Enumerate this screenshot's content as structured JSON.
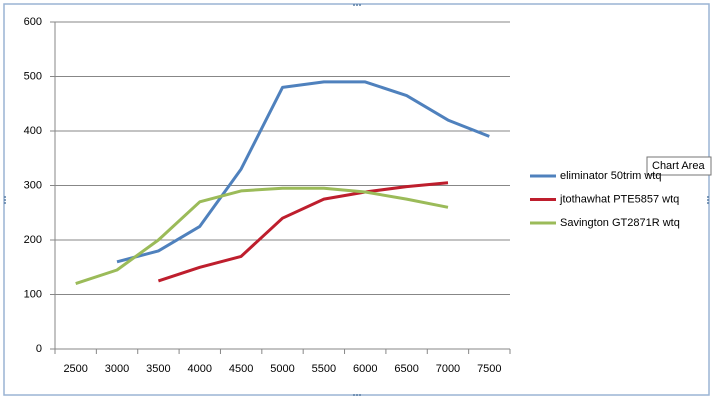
{
  "chart_data": {
    "type": "line",
    "categories": [
      "2500",
      "3000",
      "3500",
      "4000",
      "4500",
      "5000",
      "5500",
      "6000",
      "6500",
      "7000",
      "7500"
    ],
    "series": [
      {
        "name": "eliminator 50trim wtq",
        "color": "#4f81bd",
        "values": [
          null,
          160,
          180,
          225,
          330,
          480,
          490,
          490,
          465,
          420,
          390
        ]
      },
      {
        "name": "jtothawhat  PTE5857 wtq",
        "color": "#be1e2d",
        "values": [
          null,
          null,
          125,
          150,
          170,
          240,
          275,
          288,
          298,
          305,
          null
        ]
      },
      {
        "name": "Savington GT2871R wtq",
        "color": "#9bbb59",
        "values": [
          120,
          145,
          200,
          270,
          290,
          295,
          295,
          288,
          275,
          260,
          null
        ]
      }
    ],
    "ylim": [
      0,
      600
    ],
    "yticks": [
      0,
      100,
      200,
      300,
      400,
      500,
      600
    ],
    "grid": true,
    "legend": "right"
  },
  "tooltip": "Chart Area"
}
